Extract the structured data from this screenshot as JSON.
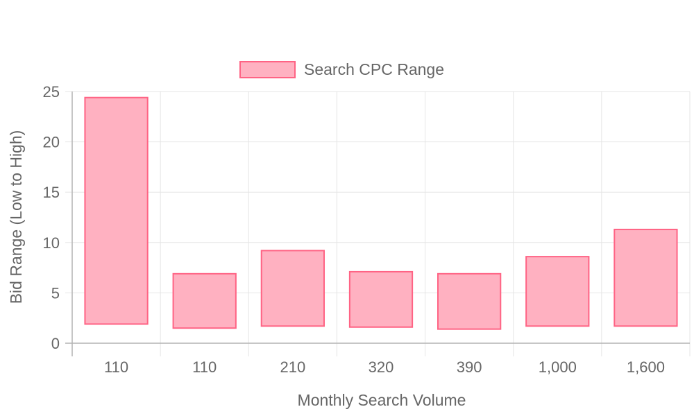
{
  "chart_data": {
    "type": "bar",
    "bar_style": "floating-range",
    "categories": [
      "110",
      "110",
      "210",
      "320",
      "390",
      "1,000",
      "1,600"
    ],
    "series": [
      {
        "name": "Search CPC Range",
        "ranges": [
          [
            1.9,
            24.4
          ],
          [
            1.5,
            6.9
          ],
          [
            1.7,
            9.2
          ],
          [
            1.6,
            7.1
          ],
          [
            1.4,
            6.9
          ],
          [
            1.7,
            8.6
          ],
          [
            1.7,
            11.3
          ]
        ],
        "fill_color": "#ffb1c1",
        "border_color": "#ff6384"
      }
    ],
    "title": "",
    "xlabel": "Monthly Search Volume",
    "ylabel": "Bid Range (Low to High)",
    "ylim": [
      0,
      25
    ],
    "yticks": [
      "0",
      "5",
      "10",
      "15",
      "20",
      "25"
    ],
    "grid": true,
    "legend_position": "top"
  },
  "colors": {
    "grid": "#e5e5e5",
    "axis": "#b4b4b4",
    "text": "#666666"
  }
}
